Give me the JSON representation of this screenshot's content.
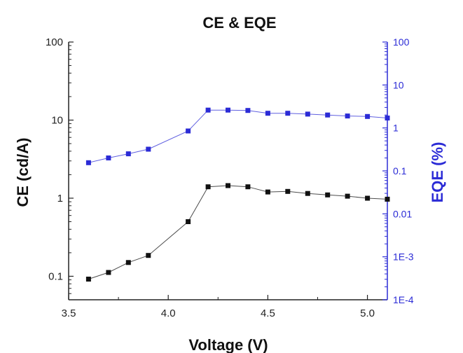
{
  "chart_data": {
    "type": "line",
    "title": "CE & EQE",
    "xlabel": "Voltage (V)",
    "ylabel_left": "CE (cd/A)",
    "ylabel_right": "EQE (%)",
    "xlim": [
      3.5,
      5.1
    ],
    "ylim_left": [
      0.05,
      100
    ],
    "ylim_right": [
      0.0001,
      100
    ],
    "yscale": "log",
    "x_ticks": [
      "3.5",
      "4.0",
      "4.5",
      "5.0"
    ],
    "y_left_ticks": [
      "0.1",
      "1",
      "10",
      "100"
    ],
    "y_right_ticks": [
      "1E-4",
      "1E-3",
      "0.01",
      "0.1",
      "1",
      "10",
      "100"
    ],
    "grid": false,
    "series": [
      {
        "axis": "left",
        "color": "#111111",
        "marker": "square",
        "x": [
          3.6,
          3.7,
          3.8,
          3.9,
          4.1,
          4.2,
          4.3,
          4.4,
          4.5,
          4.6,
          4.7,
          4.8,
          4.9,
          5.0,
          5.1
        ],
        "values": [
          0.092,
          0.112,
          0.15,
          0.185,
          0.5,
          1.4,
          1.45,
          1.4,
          1.2,
          1.22,
          1.15,
          1.1,
          1.06,
          1.0,
          0.97
        ]
      },
      {
        "axis": "right",
        "color": "#2b2bd6",
        "marker": "square",
        "x": [
          3.6,
          3.7,
          3.8,
          3.9,
          4.1,
          4.2,
          4.3,
          4.4,
          4.5,
          4.6,
          4.7,
          4.8,
          4.9,
          5.0,
          5.1
        ],
        "values": [
          0.155,
          0.2,
          0.25,
          0.32,
          0.85,
          2.6,
          2.6,
          2.55,
          2.2,
          2.2,
          2.1,
          2.0,
          1.9,
          1.85,
          1.7
        ]
      }
    ]
  }
}
